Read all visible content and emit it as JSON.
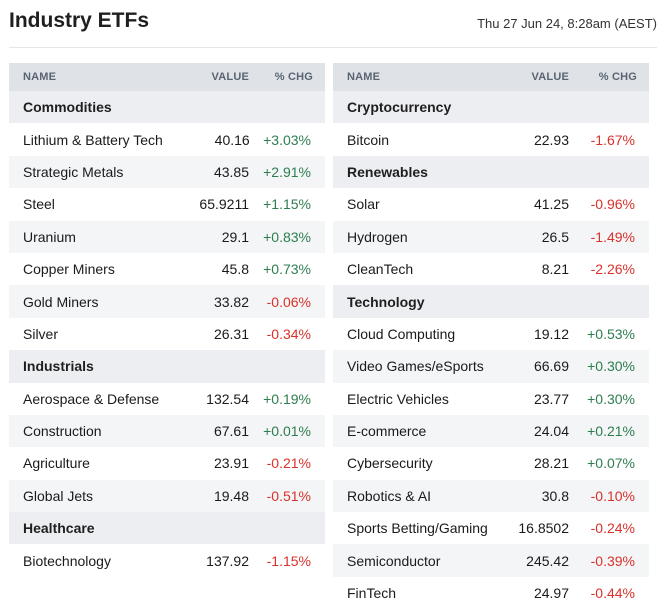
{
  "header": {
    "title": "Industry ETFs",
    "timestamp": "Thu 27 Jun 24, 8:28am (AEST)"
  },
  "columns": {
    "name": "NAME",
    "value": "VALUE",
    "chg": "% CHG"
  },
  "left": [
    {
      "group": "Commodities",
      "rows": [
        {
          "name": "Lithium & Battery Tech",
          "value": "40.16",
          "chg": "+3.03%",
          "dir": "pos"
        },
        {
          "name": "Strategic Metals",
          "value": "43.85",
          "chg": "+2.91%",
          "dir": "pos"
        },
        {
          "name": "Steel",
          "value": "65.9211",
          "chg": "+1.15%",
          "dir": "pos"
        },
        {
          "name": "Uranium",
          "value": "29.1",
          "chg": "+0.83%",
          "dir": "pos"
        },
        {
          "name": "Copper Miners",
          "value": "45.8",
          "chg": "+0.73%",
          "dir": "pos"
        },
        {
          "name": "Gold Miners",
          "value": "33.82",
          "chg": "-0.06%",
          "dir": "neg"
        },
        {
          "name": "Silver",
          "value": "26.31",
          "chg": "-0.34%",
          "dir": "neg"
        }
      ]
    },
    {
      "group": "Industrials",
      "rows": [
        {
          "name": "Aerospace & Defense",
          "value": "132.54",
          "chg": "+0.19%",
          "dir": "pos"
        },
        {
          "name": "Construction",
          "value": "67.61",
          "chg": "+0.01%",
          "dir": "pos"
        },
        {
          "name": "Agriculture",
          "value": "23.91",
          "chg": "-0.21%",
          "dir": "neg"
        },
        {
          "name": "Global Jets",
          "value": "19.48",
          "chg": "-0.51%",
          "dir": "neg"
        }
      ]
    },
    {
      "group": "Healthcare",
      "rows": [
        {
          "name": "Biotechnology",
          "value": "137.92",
          "chg": "-1.15%",
          "dir": "neg"
        }
      ]
    }
  ],
  "right": [
    {
      "group": "Cryptocurrency",
      "rows": [
        {
          "name": "Bitcoin",
          "value": "22.93",
          "chg": "-1.67%",
          "dir": "neg"
        }
      ]
    },
    {
      "group": "Renewables",
      "rows": [
        {
          "name": "Solar",
          "value": "41.25",
          "chg": "-0.96%",
          "dir": "neg"
        },
        {
          "name": "Hydrogen",
          "value": "26.5",
          "chg": "-1.49%",
          "dir": "neg"
        },
        {
          "name": "CleanTech",
          "value": "8.21",
          "chg": "-2.26%",
          "dir": "neg"
        }
      ]
    },
    {
      "group": "Technology",
      "rows": [
        {
          "name": "Cloud Computing",
          "value": "19.12",
          "chg": "+0.53%",
          "dir": "pos"
        },
        {
          "name": "Video Games/eSports",
          "value": "66.69",
          "chg": "+0.30%",
          "dir": "pos"
        },
        {
          "name": "Electric Vehicles",
          "value": "23.77",
          "chg": "+0.30%",
          "dir": "pos"
        },
        {
          "name": "E-commerce",
          "value": "24.04",
          "chg": "+0.21%",
          "dir": "pos"
        },
        {
          "name": "Cybersecurity",
          "value": "28.21",
          "chg": "+0.07%",
          "dir": "pos"
        },
        {
          "name": "Robotics & AI",
          "value": "30.8",
          "chg": "-0.10%",
          "dir": "neg"
        },
        {
          "name": "Sports Betting/Gaming",
          "value": "16.8502",
          "chg": "-0.24%",
          "dir": "neg"
        },
        {
          "name": "Semiconductor",
          "value": "245.42",
          "chg": "-0.39%",
          "dir": "neg"
        },
        {
          "name": "FinTech",
          "value": "24.97",
          "chg": "-0.44%",
          "dir": "neg"
        }
      ]
    }
  ]
}
